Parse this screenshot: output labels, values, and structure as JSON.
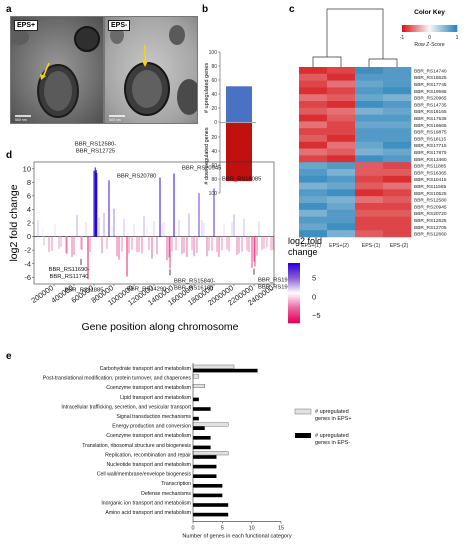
{
  "panels": {
    "a": {
      "letter": "a",
      "image_labels": [
        "EPS+",
        "EPS-"
      ],
      "scale_bars": [
        "500 nm",
        "500 nm"
      ]
    },
    "b": {
      "letter": "b",
      "chart_ref": 0
    },
    "c": {
      "letter": "c",
      "color_key_title": "Color Key",
      "color_key_ticks": [
        "-1",
        "0",
        "1"
      ],
      "color_key_label": "Row Z-Score"
    },
    "d": {
      "letter": "d"
    },
    "e": {
      "letter": "e"
    }
  },
  "chart_data": [
    {
      "type": "bar",
      "panel": "b",
      "categories": [
        "upregulated",
        "downregulated"
      ],
      "ylabel_top": "# upregulated genes",
      "ylabel_bottom": "# downregulated genes",
      "values": [
        51,
        83
      ],
      "colors": [
        "#4a72c4",
        "#c01010"
      ],
      "top_ticks": [
        "0",
        "20",
        "40",
        "60",
        "80",
        "100"
      ],
      "bottom_ticks": [
        "0",
        "20",
        "40",
        "60",
        "80",
        "100"
      ],
      "ylim": [
        0,
        100
      ]
    },
    {
      "type": "heatmap",
      "panel": "c",
      "columns": [
        "EPS+(1)",
        "EPS+(2)",
        "EPS-(1)",
        "EPS-(2)"
      ],
      "rows": [
        "BBR_RS14740",
        "BBR_RS16625",
        "BBR_RS17745",
        "BBR_RS19595",
        "BBR_RS20965",
        "BBR_RS14735",
        "BBR_RS16165",
        "BBR_RS17535",
        "BBR_RS16665",
        "BBR_RS19875",
        "BBR_RS18115",
        "BBR_RS17715",
        "BBR_RS17875",
        "BBR_RS13460",
        "BBR_RS11885",
        "BBR_RS16365",
        "BBR_RS10415",
        "BBR_RS11565",
        "BBR_RS10525",
        "BBR_RS12580",
        "BBR_RS20945",
        "BBR_RS20720",
        "BBR_RS12625",
        "BBR_RS12705",
        "BBR_RS12660"
      ],
      "color_scale": [
        "#d7191c",
        "#f7f7f7",
        "#2b83ba"
      ],
      "values": [
        [
          -0.9,
          -0.8,
          0.9,
          0.8
        ],
        [
          -0.7,
          -0.9,
          0.8,
          0.8
        ],
        [
          -0.8,
          -0.6,
          0.7,
          0.8
        ],
        [
          -0.9,
          -0.8,
          0.8,
          0.9
        ],
        [
          -0.6,
          -0.7,
          0.7,
          0.6
        ],
        [
          -0.8,
          -0.9,
          0.9,
          0.8
        ],
        [
          -0.7,
          -0.6,
          0.6,
          0.7
        ],
        [
          -0.9,
          -0.7,
          0.8,
          0.8
        ],
        [
          -0.6,
          -0.8,
          0.7,
          0.7
        ],
        [
          -0.8,
          -0.8,
          0.8,
          0.8
        ],
        [
          -0.7,
          -0.9,
          0.8,
          0.8
        ],
        [
          -0.9,
          -0.6,
          0.7,
          0.9
        ],
        [
          -0.6,
          -0.7,
          0.6,
          0.7
        ],
        [
          -0.8,
          -0.9,
          0.9,
          0.8
        ],
        [
          0.7,
          0.8,
          -0.7,
          -0.8
        ],
        [
          0.8,
          0.6,
          -0.7,
          -0.7
        ],
        [
          0.9,
          0.8,
          -0.8,
          -0.9
        ],
        [
          0.6,
          0.7,
          -0.7,
          -0.6
        ],
        [
          0.8,
          0.9,
          -0.9,
          -0.8
        ],
        [
          0.7,
          0.6,
          -0.6,
          -0.7
        ],
        [
          0.9,
          0.7,
          -0.8,
          -0.8
        ],
        [
          0.6,
          0.8,
          -0.7,
          -0.7
        ],
        [
          0.8,
          0.8,
          -0.8,
          -0.8
        ],
        [
          0.7,
          0.9,
          -0.8,
          -0.8
        ],
        [
          0.9,
          0.6,
          -0.7,
          -0.8
        ]
      ]
    },
    {
      "type": "bar",
      "panel": "d",
      "xlabel": "Gene position along chromosome",
      "ylabel": "log2 fold change",
      "xlim": [
        0,
        2400000
      ],
      "ylim": [
        -7,
        11
      ],
      "xticks": [
        200000,
        400000,
        600000,
        800000,
        1000000,
        1200000,
        1400000,
        1600000,
        1800000,
        2000000,
        2200000,
        2400000
      ],
      "yticks": [
        10,
        8,
        6,
        4,
        2,
        0,
        -2,
        -4,
        -6
      ],
      "legend_title": "log2 fold\nchange",
      "legend_ticks": [
        "5",
        "0",
        "−5"
      ],
      "legend_range": [
        -7,
        9
      ],
      "positions": [
        40000,
        90000,
        150000,
        210000,
        270000,
        330000,
        380000,
        430000,
        470000,
        520000,
        560000,
        600000,
        612000,
        618000,
        622000,
        628000,
        650000,
        700000,
        750000,
        800000,
        850000,
        900000,
        950000,
        1000000,
        1050000,
        1100000,
        1150000,
        1200000,
        1260000,
        1300000,
        1330000,
        1360000,
        1400000,
        1450000,
        1500000,
        1550000,
        1600000,
        1650000,
        1700000,
        1750000,
        1800000,
        1850000,
        1900000,
        1950000,
        2000000,
        2050000,
        2100000,
        2150000,
        2180000,
        2210000,
        2250000,
        2300000,
        2350000,
        2390000,
        100000,
        180000,
        250000,
        320000,
        400000,
        480000,
        540000,
        680000,
        730000,
        780000,
        830000,
        880000,
        930000,
        980000,
        1030000,
        1080000,
        1130000,
        1180000,
        1230000,
        1280000,
        1350000,
        1380000,
        1420000,
        1480000,
        1530000,
        1580000,
        1630000,
        1680000,
        1730000,
        1780000,
        1830000,
        1880000,
        1930000,
        1980000,
        2030000,
        2080000,
        2130000,
        2200000,
        2230000,
        2280000,
        2330000,
        2370000
      ],
      "values": [
        2.5,
        1.4,
        -2.3,
        1.8,
        -1.5,
        -2.6,
        -3.0,
        3.2,
        -1.9,
        2.1,
        -2.3,
        9.7,
        10.2,
        9.5,
        9.8,
        9.4,
        2.8,
        3.5,
        8.3,
        4.1,
        -3.4,
        2.6,
        -2.5,
        1.9,
        -2.3,
        3.0,
        -2.0,
        2.3,
        8.7,
        2.1,
        -3.5,
        -4.7,
        9.3,
        2.5,
        -2.4,
        3.4,
        -2.9,
        6.4,
        2.0,
        -2.1,
        7.1,
        -3.0,
        1.8,
        -2.2,
        3.3,
        -2.5,
        2.6,
        -2.3,
        -4.6,
        -4.4,
        2.3,
        -1.8,
        1.4,
        -2.0,
        -1.3,
        -2.1,
        -1.8,
        -2.4,
        -2.7,
        -2.0,
        -6.3,
        -2.5,
        -1.8,
        1.6,
        -2.9,
        -2.2,
        -5.9,
        -2.0,
        -2.3,
        -2.5,
        1.5,
        -3.3,
        -2.6,
        1.9,
        -3.1,
        -2.2,
        -2.0,
        -2.6,
        -3.0,
        -2.0,
        -2.4,
        2.4,
        -2.9,
        -2.1,
        -2.3,
        -2.0,
        -1.9,
        2.1,
        -2.7,
        -2.2,
        -2.1,
        -3.7,
        -2.8,
        -2.0,
        -1.6,
        -2.0
      ],
      "annotations": [
        {
          "label": "BBR_RS12580-\nBBR_RS12725",
          "gene_pos": 615000,
          "value": 10.2
        },
        {
          "label": "BBR_RS20780",
          "gene_pos": 750000,
          "value": 8.3
        },
        {
          "label": "BBR_RS20945",
          "gene_pos": 1400000,
          "value": 9.3
        },
        {
          "label": "BBR_RS18085",
          "gene_pos": 1800000,
          "value": 7.1
        },
        {
          "label": "BBR_RS11690-\nBBR_RS11740",
          "gene_pos": 470000,
          "value": -3.0
        },
        {
          "label": "BBR_RS11885",
          "gene_pos": 540000,
          "value": -6.3
        },
        {
          "label": "BBR_RS14290",
          "gene_pos": 930000,
          "value": -5.9
        },
        {
          "label": "BBR_RS15840-\nBBR_RS16160",
          "gene_pos": 1360000,
          "value": -4.7
        },
        {
          "label": "BBR_RS19515-\nBBR_RS19595",
          "gene_pos": 2200000,
          "value": -4.6
        }
      ],
      "colormap": [
        "#e8005a",
        "#e86aa6",
        "#ffffff",
        "#8a5fd6",
        "#2a00e0"
      ]
    },
    {
      "type": "bar",
      "panel": "e",
      "orientation": "horizontal",
      "xlabel": "Number of genes in each functional category",
      "xticks": [
        0,
        5,
        10,
        15
      ],
      "xlim": [
        0,
        15
      ],
      "categories": [
        "Carbohydrate transport and metabolism",
        "Post-translational modification, protein turnover, and chaperones",
        "Coenzyme transport and metabolism",
        "Lipid transport and metabolism",
        "Intracellular trafficking, secretion, and vesicular transport",
        "Signal transduction mechanisms",
        "Energy production and conversion",
        "Coenzyme transport and metabolism",
        "Translation, ribosomal structure and biogenesis",
        "Replication, recombination and repair",
        "Nucleotide transport and metabolism",
        "Cell wall/membrane/envelope biogenesis",
        "Transcription",
        "Defense mechanisms",
        "Inorganic ion transport and metabolism",
        "Amino acid transport and metabolism"
      ],
      "series": [
        {
          "name": "# upregulated genes in EPS+",
          "color": "#e0e0e0",
          "values": [
            7,
            1,
            2,
            0,
            0,
            0,
            6,
            0,
            0,
            6,
            0,
            0,
            0,
            0,
            0,
            0
          ]
        },
        {
          "name": "# upregulated genes in EPS-",
          "color": "#000000",
          "values": [
            11,
            0,
            0,
            1,
            3,
            1,
            2,
            3,
            3,
            4,
            4,
            4,
            5,
            5,
            6,
            6
          ]
        }
      ]
    }
  ]
}
